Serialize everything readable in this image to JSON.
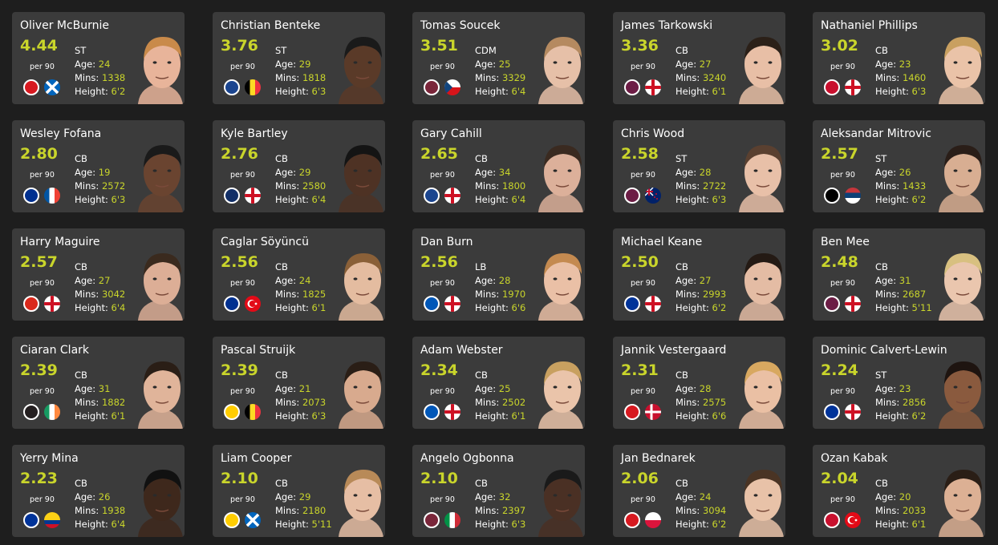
{
  "labels": {
    "per90": "per 90",
    "age": "Age: ",
    "mins": "Mins: ",
    "height": "Height: "
  },
  "colors": {
    "background": "#1e1e1e",
    "card": "#3b3b3b",
    "accent": "#c9d52b"
  },
  "players": [
    {
      "name": "Oliver McBurnie",
      "score": "4.44",
      "pos": "ST",
      "age": "24",
      "mins": "1338",
      "height": "6'2",
      "club": "sheffield-united",
      "club_color": "#d71920",
      "flag": "scotland",
      "skin": "#e8b49a",
      "hair": "#c98a4a"
    },
    {
      "name": "Christian Benteke",
      "score": "3.76",
      "pos": "ST",
      "age": "29",
      "mins": "1818",
      "height": "6'3",
      "club": "crystal-palace",
      "club_color": "#1b458f",
      "flag": "belgium",
      "skin": "#5a3a28",
      "hair": "#1a1a1a"
    },
    {
      "name": "Tomas Soucek",
      "score": "3.51",
      "pos": "CDM",
      "age": "25",
      "mins": "3329",
      "height": "6'4",
      "club": "west-ham",
      "club_color": "#7a263a",
      "flag": "czech-republic",
      "skin": "#e6c0a8",
      "hair": "#b58a60"
    },
    {
      "name": "James Tarkowski",
      "score": "3.36",
      "pos": "CB",
      "age": "27",
      "mins": "3240",
      "height": "6'1",
      "club": "burnley",
      "club_color": "#6c1d45",
      "flag": "england",
      "skin": "#e8bfa6",
      "hair": "#2b2018"
    },
    {
      "name": "Nathaniel Phillips",
      "score": "3.02",
      "pos": "CB",
      "age": "23",
      "mins": "1460",
      "height": "6'3",
      "club": "liverpool",
      "club_color": "#c8102e",
      "flag": "england",
      "skin": "#eac3a8",
      "hair": "#c9a060"
    },
    {
      "name": "Wesley Fofana",
      "score": "2.80",
      "pos": "CB",
      "age": "19",
      "mins": "2572",
      "height": "6'3",
      "club": "leicester",
      "club_color": "#003090",
      "flag": "france",
      "skin": "#6a4430",
      "hair": "#1a1a1a"
    },
    {
      "name": "Kyle Bartley",
      "score": "2.76",
      "pos": "CB",
      "age": "29",
      "mins": "2580",
      "height": "6'4",
      "club": "west-brom",
      "club_color": "#122f67",
      "flag": "england",
      "skin": "#4e3224",
      "hair": "#141414"
    },
    {
      "name": "Gary Cahill",
      "score": "2.65",
      "pos": "CB",
      "age": "34",
      "mins": "1800",
      "height": "6'4",
      "club": "crystal-palace",
      "club_color": "#1b458f",
      "flag": "england",
      "skin": "#dcb09a",
      "hair": "#3a2a20"
    },
    {
      "name": "Chris Wood",
      "score": "2.58",
      "pos": "ST",
      "age": "28",
      "mins": "2722",
      "height": "6'3",
      "club": "burnley",
      "club_color": "#6c1d45",
      "flag": "new-zealand",
      "skin": "#e8c0a8",
      "hair": "#5a4030"
    },
    {
      "name": "Aleksandar Mitrovic",
      "score": "2.57",
      "pos": "ST",
      "age": "26",
      "mins": "1433",
      "height": "6'2",
      "club": "fulham",
      "club_color": "#000000",
      "flag": "serbia",
      "skin": "#d8ae92",
      "hair": "#2a1e18"
    },
    {
      "name": "Harry Maguire",
      "score": "2.57",
      "pos": "CB",
      "age": "27",
      "mins": "3042",
      "height": "6'4",
      "club": "manchester-united",
      "club_color": "#da291c",
      "flag": "england",
      "skin": "#dcae96",
      "hair": "#3a2a1e"
    },
    {
      "name": "Caglar Söyüncü",
      "score": "2.56",
      "pos": "CB",
      "age": "24",
      "mins": "1825",
      "height": "6'1",
      "club": "leicester",
      "club_color": "#003090",
      "flag": "turkey",
      "skin": "#e4bca0",
      "hair": "#8a6038"
    },
    {
      "name": "Dan Burn",
      "score": "2.56",
      "pos": "LB",
      "age": "28",
      "mins": "1970",
      "height": "6'6",
      "club": "brighton",
      "club_color": "#0057b8",
      "flag": "england",
      "skin": "#eac0a6",
      "hair": "#c48a50"
    },
    {
      "name": "Michael Keane",
      "score": "2.50",
      "pos": "CB",
      "age": "27",
      "mins": "2993",
      "height": "6'2",
      "club": "everton",
      "club_color": "#003399",
      "flag": "england",
      "skin": "#e4bca4",
      "hair": "#241a14"
    },
    {
      "name": "Ben Mee",
      "score": "2.48",
      "pos": "CB",
      "age": "31",
      "mins": "2687",
      "height": "5'11",
      "club": "burnley",
      "club_color": "#6c1d45",
      "flag": "england",
      "skin": "#eac6ae",
      "hair": "#d8c080"
    },
    {
      "name": "Ciaran Clark",
      "score": "2.39",
      "pos": "CB",
      "age": "31",
      "mins": "1882",
      "height": "6'1",
      "club": "newcastle",
      "club_color": "#241f20",
      "flag": "ireland",
      "skin": "#e0b49a",
      "hair": "#2a1e16"
    },
    {
      "name": "Pascal Struijk",
      "score": "2.39",
      "pos": "CB",
      "age": "21",
      "mins": "2073",
      "height": "6'3",
      "club": "leeds",
      "club_color": "#ffcd00",
      "flag": "belgium",
      "skin": "#d8aa8e",
      "hair": "#2a1e16"
    },
    {
      "name": "Adam Webster",
      "score": "2.34",
      "pos": "CB",
      "age": "25",
      "mins": "2502",
      "height": "6'1",
      "club": "brighton",
      "club_color": "#0057b8",
      "flag": "england",
      "skin": "#eac4aa",
      "hair": "#c8a060"
    },
    {
      "name": "Jannik Vestergaard",
      "score": "2.31",
      "pos": "CB",
      "age": "28",
      "mins": "2575",
      "height": "6'6",
      "club": "southampton",
      "club_color": "#d71920",
      "flag": "denmark",
      "skin": "#eac0a4",
      "hair": "#d8a860"
    },
    {
      "name": "Dominic Calvert-Lewin",
      "score": "2.24",
      "pos": "ST",
      "age": "23",
      "mins": "2856",
      "height": "6'2",
      "club": "everton",
      "club_color": "#003399",
      "flag": "england",
      "skin": "#8a5a3e",
      "hair": "#1e1410"
    },
    {
      "name": "Yerry Mina",
      "score": "2.23",
      "pos": "CB",
      "age": "26",
      "mins": "1938",
      "height": "6'4",
      "club": "everton",
      "club_color": "#003399",
      "flag": "colombia",
      "skin": "#3e281c",
      "hair": "#111111"
    },
    {
      "name": "Liam Cooper",
      "score": "2.10",
      "pos": "CB",
      "age": "29",
      "mins": "2180",
      "height": "5'11",
      "club": "leeds",
      "club_color": "#ffcd00",
      "flag": "scotland",
      "skin": "#e6bea4",
      "hair": "#b88a58"
    },
    {
      "name": "Angelo Ogbonna",
      "score": "2.10",
      "pos": "CB",
      "age": "32",
      "mins": "2397",
      "height": "6'3",
      "club": "west-ham",
      "club_color": "#7a263a",
      "flag": "italy",
      "skin": "#4a3024",
      "hair": "#1a1a1a"
    },
    {
      "name": "Jan Bednarek",
      "score": "2.06",
      "pos": "CB",
      "age": "24",
      "mins": "3094",
      "height": "6'2",
      "club": "southampton",
      "club_color": "#d71920",
      "flag": "poland",
      "skin": "#e8c2a8",
      "hair": "#4a3424"
    },
    {
      "name": "Ozan Kabak",
      "score": "2.04",
      "pos": "CB",
      "age": "20",
      "mins": "2033",
      "height": "6'1",
      "club": "liverpool",
      "club_color": "#c8102e",
      "flag": "turkey",
      "skin": "#dcb094",
      "hair": "#2a1e16"
    }
  ]
}
